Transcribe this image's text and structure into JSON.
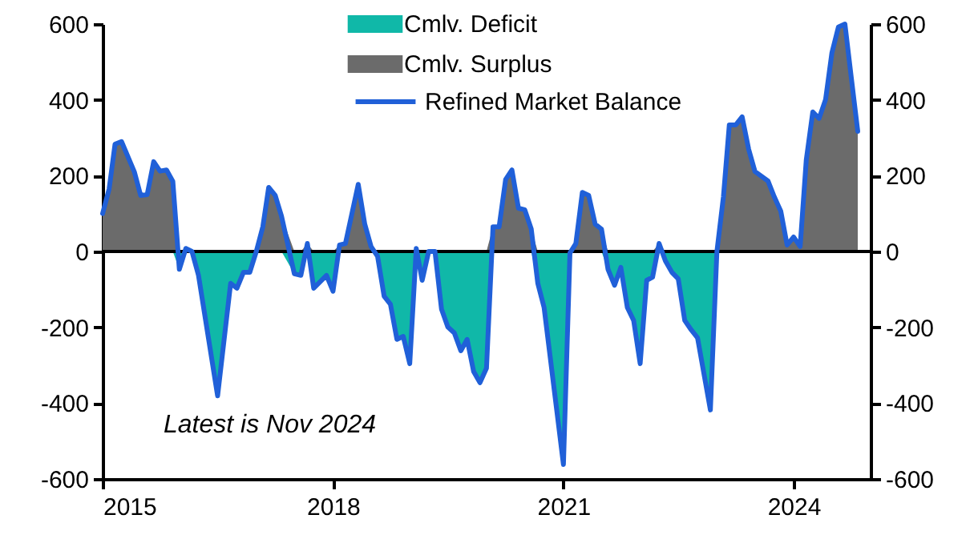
{
  "chart_data": {
    "type": "line",
    "x": [
      "2015-01",
      "2015-02",
      "2015-03",
      "2015-04",
      "2015-06",
      "2015-07",
      "2015-08",
      "2015-09",
      "2015-10",
      "2015-11",
      "2015-12",
      "2016-01",
      "2016-02",
      "2016-03",
      "2016-04",
      "2016-07",
      "2016-09",
      "2016-10",
      "2016-11",
      "2016-12",
      "2017-01",
      "2017-02",
      "2017-03",
      "2017-04",
      "2017-05",
      "2017-07",
      "2017-08",
      "2017-09",
      "2017-10",
      "2017-12",
      "2018-01",
      "2018-02",
      "2018-03",
      "2018-05",
      "2018-06",
      "2018-07",
      "2018-08",
      "2018-09",
      "2018-10",
      "2018-11",
      "2018-12",
      "2019-01",
      "2019-02",
      "2019-03",
      "2019-04",
      "2019-05",
      "2019-06",
      "2019-07",
      "2019-08",
      "2019-09",
      "2019-10",
      "2019-11",
      "2019-12",
      "2020-01",
      "2020-02",
      "2020-03",
      "2020-04",
      "2020-05",
      "2020-06",
      "2020-07",
      "2020-08",
      "2020-09",
      "2020-10",
      "2021-01",
      "2021-02",
      "2021-03",
      "2021-04",
      "2021-05",
      "2021-06",
      "2021-07",
      "2021-08",
      "2021-09",
      "2021-10",
      "2021-11",
      "2021-12",
      "2022-01",
      "2022-02",
      "2022-03",
      "2022-04",
      "2022-05",
      "2022-06",
      "2022-07",
      "2022-08",
      "2022-09",
      "2022-10",
      "2022-12",
      "2023-01",
      "2023-02",
      "2023-03",
      "2023-04",
      "2023-05",
      "2023-06",
      "2023-07",
      "2023-09",
      "2023-10",
      "2023-11",
      "2023-12",
      "2024-01",
      "2024-02",
      "2024-03",
      "2024-04",
      "2024-05",
      "2024-06",
      "2024-07",
      "2024-08",
      "2024-09",
      "2024-10",
      "2024-11"
    ],
    "series": [
      {
        "name": "Cmlv. Deficit",
        "type": "area",
        "color": "#10b8a8",
        "values": [
          0,
          0,
          0,
          0,
          0,
          0,
          0,
          0,
          0,
          0,
          0,
          -47,
          0,
          0,
          -63,
          -381,
          -84,
          -97,
          -55,
          -55,
          0,
          0,
          0,
          0,
          0,
          -59,
          -63,
          0,
          -97,
          -63,
          -105,
          0,
          0,
          0,
          0,
          0,
          -13,
          -118,
          -139,
          -232,
          -224,
          -296,
          0,
          -76,
          0,
          0,
          -152,
          -199,
          -215,
          -262,
          -232,
          -317,
          -346,
          -308,
          0,
          0,
          0,
          0,
          0,
          0,
          0,
          -84,
          -148,
          -562,
          -4,
          0,
          0,
          0,
          0,
          0,
          -47,
          -89,
          -42,
          -148,
          -182,
          -296,
          -76,
          -68,
          0,
          -25,
          -55,
          -72,
          -182,
          -207,
          -228,
          -418,
          0,
          0,
          0,
          0,
          0,
          0,
          0,
          0,
          0,
          0,
          0,
          0,
          0,
          0,
          0,
          0,
          0,
          0,
          0,
          0,
          0,
          0
        ]
      },
      {
        "name": "Cmlv. Surplus",
        "type": "area",
        "color": "#6b6b6b",
        "values": [
          100,
          165,
          283,
          290,
          210,
          148,
          150,
          237,
          212,
          215,
          185,
          0,
          8,
          0,
          0,
          0,
          0,
          0,
          0,
          0,
          0,
          65,
          169,
          148,
          93,
          0,
          0,
          21,
          0,
          0,
          0,
          17,
          21,
          177,
          72,
          13,
          0,
          0,
          0,
          0,
          0,
          0,
          8,
          0,
          0,
          0,
          0,
          0,
          0,
          0,
          0,
          0,
          0,
          0,
          65,
          65,
          190,
          215,
          114,
          110,
          59,
          0,
          0,
          0,
          0,
          21,
          156,
          148,
          72,
          59,
          0,
          0,
          0,
          0,
          0,
          0,
          0,
          0,
          21,
          0,
          0,
          0,
          0,
          0,
          0,
          0,
          0,
          144,
          334,
          334,
          355,
          270,
          211,
          186,
          144,
          106,
          17,
          38,
          13,
          241,
          368,
          351,
          401,
          524,
          592,
          600,
          460,
          317
        ]
      },
      {
        "name": "Refined Market Balance",
        "color": "#2060d8",
        "values": [
          100,
          165,
          283,
          290,
          210,
          148,
          150,
          237,
          212,
          215,
          185,
          -47,
          8,
          0,
          -63,
          -381,
          -84,
          -97,
          -55,
          -55,
          0,
          65,
          169,
          148,
          93,
          -59,
          -63,
          21,
          -97,
          -63,
          -105,
          17,
          21,
          177,
          72,
          13,
          -13,
          -118,
          -139,
          -232,
          -224,
          -296,
          8,
          -76,
          0,
          0,
          -152,
          -199,
          -215,
          -262,
          -232,
          -317,
          -346,
          -308,
          65,
          65,
          190,
          215,
          114,
          110,
          59,
          -84,
          -148,
          -562,
          -4,
          21,
          156,
          148,
          72,
          59,
          -47,
          -89,
          -42,
          -148,
          -182,
          -296,
          -76,
          -68,
          21,
          -25,
          -55,
          -72,
          -182,
          -207,
          -228,
          -418,
          0,
          144,
          334,
          334,
          355,
          270,
          211,
          186,
          144,
          106,
          17,
          38,
          13,
          241,
          368,
          351,
          401,
          524,
          592,
          600,
          460,
          317
        ]
      }
    ],
    "xlim": [
      "2015-01",
      "2025-01"
    ],
    "xticks": [
      "2015",
      "2018",
      "2021",
      "2024"
    ],
    "ylim": [
      -600,
      600
    ],
    "yticks": [
      -600,
      -400,
      -200,
      0,
      200,
      400,
      600
    ],
    "y2lim": [
      -600,
      600
    ],
    "y2ticks": [
      -600,
      -400,
      -200,
      0,
      200,
      400,
      600
    ],
    "ref_lines": [
      {
        "axis": "y",
        "value": 0,
        "color": "#000000"
      }
    ],
    "annotations": [
      "Latest is Nov 2024"
    ],
    "legend": "top",
    "grid": false
  }
}
